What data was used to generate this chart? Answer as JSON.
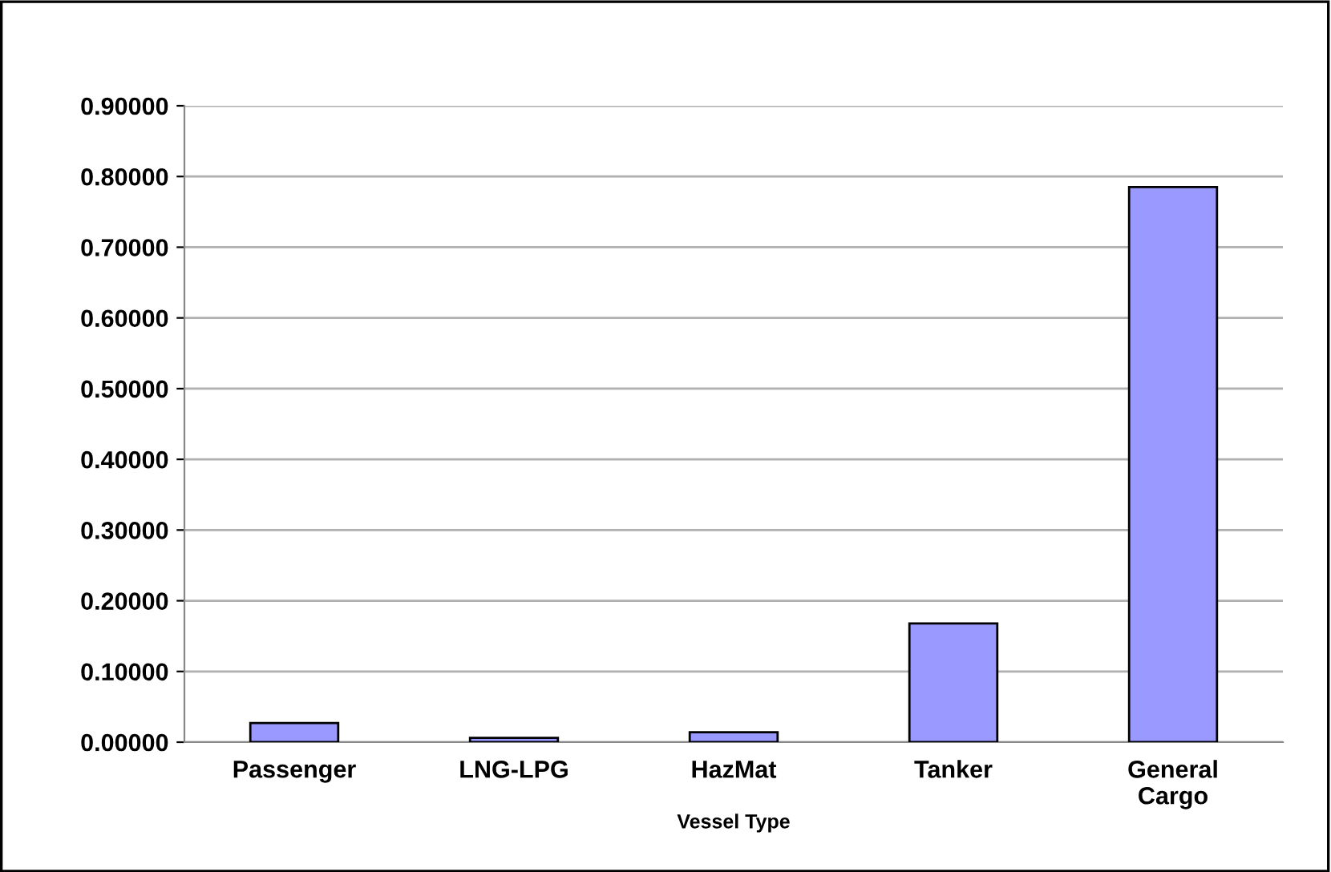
{
  "chart_data": {
    "type": "bar",
    "xlabel": "Vessel Type",
    "categories": [
      "Passenger",
      "LNG-LPG",
      "HazMat",
      "Tanker",
      "General\nCargo"
    ],
    "values": [
      0.027,
      0.006,
      0.014,
      0.168,
      0.785
    ],
    "color": "#9999ff",
    "ylim": [
      0,
      0.9
    ],
    "yticks": [
      {
        "value": 0,
        "label": "0.00000"
      },
      {
        "value": 0.1,
        "label": "0.10000"
      },
      {
        "value": 0.2,
        "label": "0.20000"
      },
      {
        "value": 0.3,
        "label": "0.30000"
      },
      {
        "value": 0.4,
        "label": "0.40000"
      },
      {
        "value": 0.5,
        "label": "0.50000"
      },
      {
        "value": 0.6,
        "label": "0.60000"
      },
      {
        "value": 0.7,
        "label": "0.70000"
      },
      {
        "value": 0.8,
        "label": "0.80000"
      },
      {
        "value": 0.9,
        "label": "0.90000"
      }
    ],
    "grid": "y"
  }
}
